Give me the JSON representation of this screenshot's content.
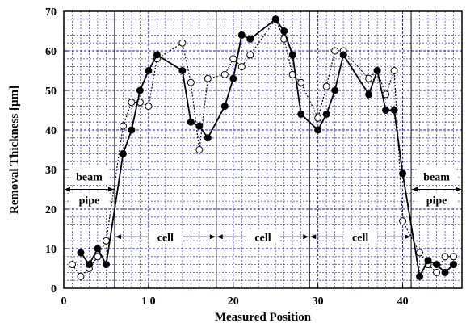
{
  "chart_data": {
    "type": "line",
    "title": "",
    "xlabel": "Measured Position",
    "ylabel": "Removal Thickness [µm]",
    "xlim": [
      0,
      47
    ],
    "ylim": [
      0,
      70
    ],
    "x_ticks": [
      0,
      10,
      20,
      30,
      40
    ],
    "x_tick_labels": [
      "0",
      "1 0",
      "20",
      "30",
      "40"
    ],
    "y_ticks": [
      0,
      10,
      20,
      30,
      40,
      50,
      60,
      70
    ],
    "y_tick_labels": [
      "0",
      "10",
      "20",
      "30",
      "40",
      "50",
      "60",
      "70"
    ],
    "grid": true,
    "boundaries": [
      6,
      18,
      29,
      41
    ],
    "series": [
      {
        "name": "",
        "marker": "filled-circle",
        "line": "solid",
        "x": [
          2,
          3,
          4,
          5,
          7,
          8,
          9,
          10,
          11,
          14,
          15,
          16,
          17,
          19,
          20,
          21,
          22,
          25,
          26,
          27,
          28,
          30,
          31,
          32,
          33,
          36,
          37,
          38,
          39,
          40,
          42,
          43,
          44,
          45,
          46
        ],
        "y": [
          9,
          6,
          10,
          6,
          34,
          40,
          50,
          55,
          59,
          55,
          42,
          41,
          38,
          46,
          53,
          64,
          63,
          68,
          65,
          59,
          44,
          40,
          44,
          50,
          59,
          49,
          55,
          45,
          45,
          29,
          3,
          7,
          6,
          4,
          6
        ]
      },
      {
        "name": "",
        "marker": "open-circle",
        "line": "dotted",
        "x": [
          1,
          2,
          3,
          4,
          5,
          7,
          8,
          9,
          10,
          11,
          14,
          15,
          16,
          17,
          19,
          20,
          21,
          22,
          25,
          26,
          27,
          28,
          30,
          31,
          32,
          33,
          36,
          37,
          38,
          39,
          40,
          42,
          43,
          44,
          45,
          46
        ],
        "y": [
          6,
          3,
          5,
          8,
          12,
          41,
          47,
          47,
          46,
          58,
          62,
          52,
          35,
          53,
          54,
          58,
          56,
          59,
          68,
          63,
          54,
          52,
          43,
          51,
          60,
          60,
          53,
          55,
          49,
          55,
          17,
          9,
          6,
          4,
          8,
          8
        ]
      }
    ],
    "annotations": [
      {
        "id": "beam-pipe-left",
        "lines": [
          "beam",
          "pipe"
        ],
        "x_from": 0,
        "x_to": 6,
        "y": 25
      },
      {
        "id": "cell-1",
        "lines": [
          "cell"
        ],
        "x_from": 6,
        "x_to": 18,
        "y": 13
      },
      {
        "id": "cell-2",
        "lines": [
          "cell"
        ],
        "x_from": 18,
        "x_to": 29,
        "y": 13
      },
      {
        "id": "cell-3",
        "lines": [
          "cell"
        ],
        "x_from": 29,
        "x_to": 41,
        "y": 13
      },
      {
        "id": "beam-pipe-right",
        "lines": [
          "beam",
          "pipe"
        ],
        "x_from": 41,
        "x_to": 47,
        "y": 25
      }
    ]
  }
}
